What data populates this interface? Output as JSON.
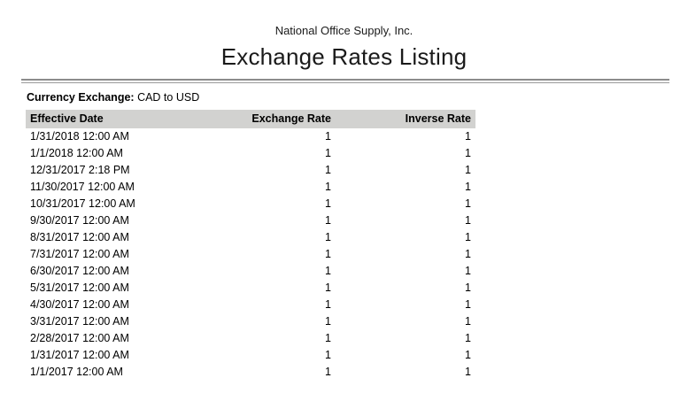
{
  "report": {
    "company": "National Office Supply, Inc.",
    "title": "Exchange Rates Listing",
    "filter_label": "Currency Exchange:",
    "filter_value": "CAD to USD"
  },
  "table": {
    "columns": [
      "Effective Date",
      "Exchange Rate",
      "Inverse Rate"
    ],
    "rows": [
      {
        "effective_date": "1/31/2018 12:00 AM",
        "exchange_rate": "1",
        "inverse_rate": "1"
      },
      {
        "effective_date": "1/1/2018 12:00 AM",
        "exchange_rate": "1",
        "inverse_rate": "1"
      },
      {
        "effective_date": "12/31/2017 2:18 PM",
        "exchange_rate": "1",
        "inverse_rate": "1"
      },
      {
        "effective_date": "11/30/2017 12:00 AM",
        "exchange_rate": "1",
        "inverse_rate": "1"
      },
      {
        "effective_date": "10/31/2017 12:00 AM",
        "exchange_rate": "1",
        "inverse_rate": "1"
      },
      {
        "effective_date": "9/30/2017 12:00 AM",
        "exchange_rate": "1",
        "inverse_rate": "1"
      },
      {
        "effective_date": "8/31/2017 12:00 AM",
        "exchange_rate": "1",
        "inverse_rate": "1"
      },
      {
        "effective_date": "7/31/2017 12:00 AM",
        "exchange_rate": "1",
        "inverse_rate": "1"
      },
      {
        "effective_date": "6/30/2017 12:00 AM",
        "exchange_rate": "1",
        "inverse_rate": "1"
      },
      {
        "effective_date": "5/31/2017 12:00 AM",
        "exchange_rate": "1",
        "inverse_rate": "1"
      },
      {
        "effective_date": "4/30/2017 12:00 AM",
        "exchange_rate": "1",
        "inverse_rate": "1"
      },
      {
        "effective_date": "3/31/2017 12:00 AM",
        "exchange_rate": "1",
        "inverse_rate": "1"
      },
      {
        "effective_date": "2/28/2017 12:00 AM",
        "exchange_rate": "1",
        "inverse_rate": "1"
      },
      {
        "effective_date": "1/31/2017 12:00 AM",
        "exchange_rate": "1",
        "inverse_rate": "1"
      },
      {
        "effective_date": "1/1/2017 12:00 AM",
        "exchange_rate": "1",
        "inverse_rate": "1"
      }
    ]
  },
  "colors": {
    "table_header_bg": "#d2d2d0",
    "divider_rule": "#8c8c8c",
    "text": "#1a1a1a",
    "page_bg": "#ffffff"
  }
}
